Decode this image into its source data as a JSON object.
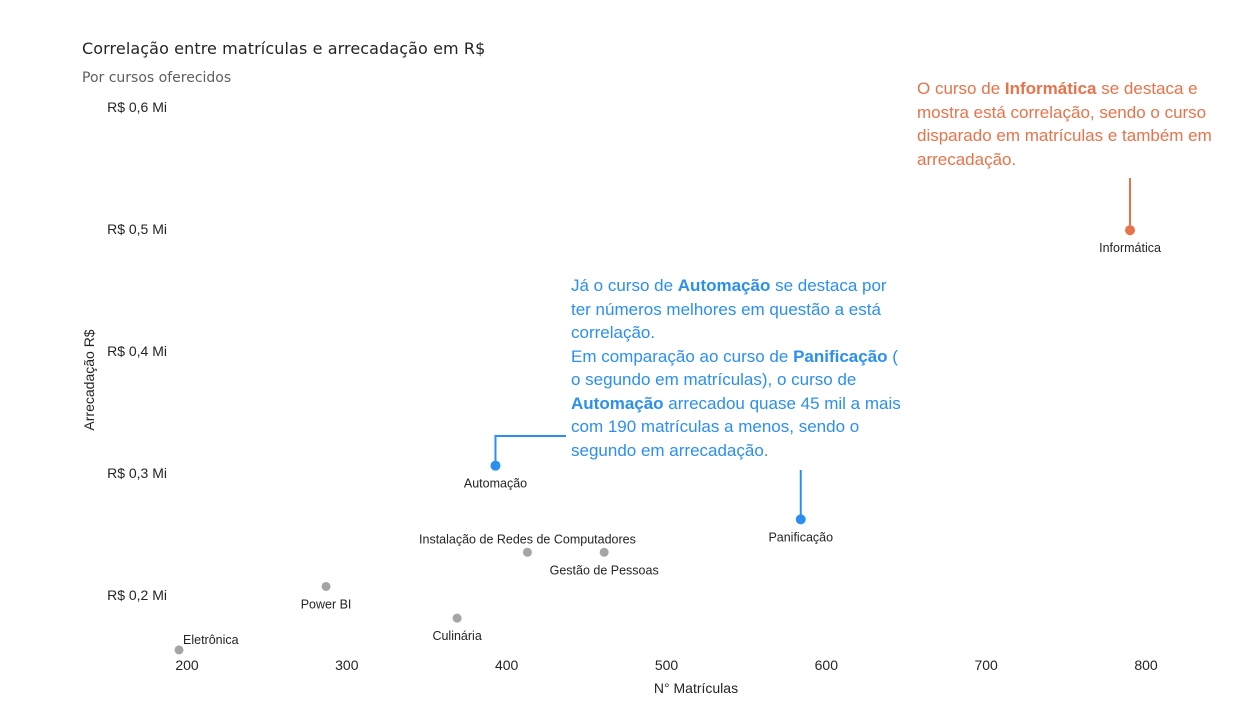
{
  "chart_data": {
    "type": "scatter",
    "title": "Correlação entre matrículas e arrecadação em R$",
    "subtitle": "Por cursos oferecidos",
    "xlabel": "N° Matrículas",
    "ylabel": "Arrecadação R$",
    "xlim": [
      195,
      820
    ],
    "ylim": [
      0.155,
      0.6
    ],
    "x_ticks": [
      {
        "value": 200,
        "label": "200"
      },
      {
        "value": 300,
        "label": "300"
      },
      {
        "value": 400,
        "label": "400"
      },
      {
        "value": 500,
        "label": "500"
      },
      {
        "value": 600,
        "label": "600"
      },
      {
        "value": 700,
        "label": "700"
      },
      {
        "value": 800,
        "label": "800"
      }
    ],
    "y_ticks": [
      {
        "value": 0.2,
        "label": "R$ 0,2 Mi"
      },
      {
        "value": 0.3,
        "label": "R$ 0,3 Mi"
      },
      {
        "value": 0.4,
        "label": "R$ 0,4 Mi"
      },
      {
        "value": 0.5,
        "label": "R$ 0,5 Mi"
      },
      {
        "value": 0.6,
        "label": "R$ 0,6 Mi"
      }
    ],
    "grid": false,
    "colors": {
      "default": "#a5a5a5",
      "highlight_blue": "#2b8ff0",
      "highlight_orange": "#e8734a"
    },
    "points": [
      {
        "name": "Informática",
        "x": 790,
        "y": 0.499,
        "color": "#e8734a",
        "label_pos": "below"
      },
      {
        "name": "Panificação",
        "x": 584,
        "y": 0.262,
        "color": "#2b8ff0",
        "label_pos": "below"
      },
      {
        "name": "Automação",
        "x": 393,
        "y": 0.306,
        "color": "#2b8ff0",
        "label_pos": "below"
      },
      {
        "name": "Instalação de Redes de Computadores",
        "x": 413,
        "y": 0.235,
        "color": "#a5a5a5",
        "label_pos": "above"
      },
      {
        "name": "Gestão de Pessoas",
        "x": 461,
        "y": 0.235,
        "color": "#a5a5a5",
        "label_pos": "below"
      },
      {
        "name": "Power BI",
        "x": 287,
        "y": 0.207,
        "color": "#a5a5a5",
        "label_pos": "below"
      },
      {
        "name": "Culinária",
        "x": 369,
        "y": 0.181,
        "color": "#a5a5a5",
        "label_pos": "below"
      },
      {
        "name": "Eletrônica",
        "x": 195,
        "y": 0.155,
        "color": "#a5a5a5",
        "label_pos": "above-right"
      }
    ]
  },
  "annotations": {
    "informatica": {
      "p1": "O curso de ",
      "b1": "Informática",
      "p2": " se destaca e mostra está correlação, sendo o curso disparado em matrículas e também em arrecadação."
    },
    "automacao": {
      "p1": "Já o curso de ",
      "b1": "Automação",
      "p2": " se destaca por ter números melhores em questão a está correlação.",
      "p3": "Em comparação ao curso de ",
      "b2": "Panificação",
      "p4": " ( o segundo em matrículas), o curso de ",
      "b3": "Automação",
      "p5": " arrecadou quase 45 mil a mais com 190 matrículas a menos, sendo o segundo em arrecadação."
    }
  }
}
